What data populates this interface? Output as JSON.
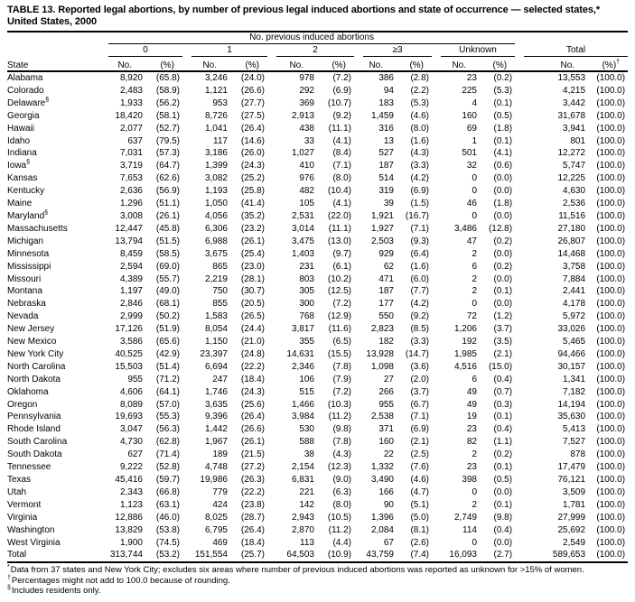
{
  "title": {
    "line1": "TABLE 13. Reported legal abortions, by number of previous legal induced abortions and state of occurrence — selected states,*",
    "line2": "United States, 2000"
  },
  "table": {
    "header": {
      "spanner": "No. previous induced abortions",
      "state_col": "State",
      "groups": [
        "0",
        "1",
        "2",
        "≥3",
        "Unknown",
        "Total"
      ],
      "no_label": "No.",
      "pct_label": "(%)",
      "total_pct_marker": "†"
    },
    "rows": [
      {
        "state": "Alabama",
        "marker": "",
        "v": [
          "8,920",
          "(65.8)",
          "3,246",
          "(24.0)",
          "978",
          "(7.2)",
          "386",
          "(2.8)",
          "23",
          "(0.2)",
          "13,553",
          "(100.0)"
        ]
      },
      {
        "state": "Colorado",
        "marker": "",
        "v": [
          "2,483",
          "(58.9)",
          "1,121",
          "(26.6)",
          "292",
          "(6.9)",
          "94",
          "(2.2)",
          "225",
          "(5.3)",
          "4,215",
          "(100.0)"
        ]
      },
      {
        "state": "Delaware",
        "marker": "§",
        "v": [
          "1,933",
          "(56.2)",
          "953",
          "(27.7)",
          "369",
          "(10.7)",
          "183",
          "(5.3)",
          "4",
          "(0.1)",
          "3,442",
          "(100.0)"
        ]
      },
      {
        "state": "Georgia",
        "marker": "",
        "v": [
          "18,420",
          "(58.1)",
          "8,726",
          "(27.5)",
          "2,913",
          "(9.2)",
          "1,459",
          "(4.6)",
          "160",
          "(0.5)",
          "31,678",
          "(100.0)"
        ]
      },
      {
        "state": "Hawaii",
        "marker": "",
        "v": [
          "2,077",
          "(52.7)",
          "1,041",
          "(26.4)",
          "438",
          "(11.1)",
          "316",
          "(8.0)",
          "69",
          "(1.8)",
          "3,941",
          "(100.0)"
        ]
      },
      {
        "state": "Idaho",
        "marker": "",
        "v": [
          "637",
          "(79.5)",
          "117",
          "(14.6)",
          "33",
          "(4.1)",
          "13",
          "(1.6)",
          "1",
          "(0.1)",
          "801",
          "(100.0)"
        ]
      },
      {
        "state": "Indiana",
        "marker": "",
        "v": [
          "7,031",
          "(57.3)",
          "3,186",
          "(26.0)",
          "1,027",
          "(8.4)",
          "527",
          "(4.3)",
          "501",
          "(4.1)",
          "12,272",
          "(100.0)"
        ]
      },
      {
        "state": "Iowa",
        "marker": "§",
        "v": [
          "3,719",
          "(64.7)",
          "1,399",
          "(24.3)",
          "410",
          "(7.1)",
          "187",
          "(3.3)",
          "32",
          "(0.6)",
          "5,747",
          "(100.0)"
        ]
      },
      {
        "state": "Kansas",
        "marker": "",
        "v": [
          "7,653",
          "(62.6)",
          "3,082",
          "(25.2)",
          "976",
          "(8.0)",
          "514",
          "(4.2)",
          "0",
          "(0.0)",
          "12,225",
          "(100.0)"
        ]
      },
      {
        "state": "Kentucky",
        "marker": "",
        "v": [
          "2,636",
          "(56.9)",
          "1,193",
          "(25.8)",
          "482",
          "(10.4)",
          "319",
          "(6.9)",
          "0",
          "(0.0)",
          "4,630",
          "(100.0)"
        ]
      },
      {
        "state": "Maine",
        "marker": "",
        "v": [
          "1,296",
          "(51.1)",
          "1,050",
          "(41.4)",
          "105",
          "(4.1)",
          "39",
          "(1.5)",
          "46",
          "(1.8)",
          "2,536",
          "(100.0)"
        ]
      },
      {
        "state": "Maryland",
        "marker": "§",
        "v": [
          "3,008",
          "(26.1)",
          "4,056",
          "(35.2)",
          "2,531",
          "(22.0)",
          "1,921",
          "(16.7)",
          "0",
          "(0.0)",
          "11,516",
          "(100.0)"
        ]
      },
      {
        "state": "Massachusetts",
        "marker": "",
        "v": [
          "12,447",
          "(45.8)",
          "6,306",
          "(23.2)",
          "3,014",
          "(11.1)",
          "1,927",
          "(7.1)",
          "3,486",
          "(12.8)",
          "27,180",
          "(100.0)"
        ]
      },
      {
        "state": "Michigan",
        "marker": "",
        "v": [
          "13,794",
          "(51.5)",
          "6,988",
          "(26.1)",
          "3,475",
          "(13.0)",
          "2,503",
          "(9.3)",
          "47",
          "(0.2)",
          "26,807",
          "(100.0)"
        ]
      },
      {
        "state": "Minnesota",
        "marker": "",
        "v": [
          "8,459",
          "(58.5)",
          "3,675",
          "(25.4)",
          "1,403",
          "(9.7)",
          "929",
          "(6.4)",
          "2",
          "(0.0)",
          "14,468",
          "(100.0)"
        ]
      },
      {
        "state": "Mississippi",
        "marker": "",
        "v": [
          "2,594",
          "(69.0)",
          "865",
          "(23.0)",
          "231",
          "(6.1)",
          "62",
          "(1.6)",
          "6",
          "(0.2)",
          "3,758",
          "(100.0)"
        ]
      },
      {
        "state": "Missouri",
        "marker": "",
        "v": [
          "4,389",
          "(55.7)",
          "2,219",
          "(28.1)",
          "803",
          "(10.2)",
          "471",
          "(6.0)",
          "2",
          "(0.0)",
          "7,884",
          "(100.0)"
        ]
      },
      {
        "state": "Montana",
        "marker": "",
        "v": [
          "1,197",
          "(49.0)",
          "750",
          "(30.7)",
          "305",
          "(12.5)",
          "187",
          "(7.7)",
          "2",
          "(0.1)",
          "2,441",
          "(100.0)"
        ]
      },
      {
        "state": "Nebraska",
        "marker": "",
        "v": [
          "2,846",
          "(68.1)",
          "855",
          "(20.5)",
          "300",
          "(7.2)",
          "177",
          "(4.2)",
          "0",
          "(0.0)",
          "4,178",
          "(100.0)"
        ]
      },
      {
        "state": "Nevada",
        "marker": "",
        "v": [
          "2,999",
          "(50.2)",
          "1,583",
          "(26.5)",
          "768",
          "(12.9)",
          "550",
          "(9.2)",
          "72",
          "(1.2)",
          "5,972",
          "(100.0)"
        ]
      },
      {
        "state": "New Jersey",
        "marker": "",
        "v": [
          "17,126",
          "(51.9)",
          "8,054",
          "(24.4)",
          "3,817",
          "(11.6)",
          "2,823",
          "(8.5)",
          "1,206",
          "(3.7)",
          "33,026",
          "(100.0)"
        ]
      },
      {
        "state": "New Mexico",
        "marker": "",
        "v": [
          "3,586",
          "(65.6)",
          "1,150",
          "(21.0)",
          "355",
          "(6.5)",
          "182",
          "(3.3)",
          "192",
          "(3.5)",
          "5,465",
          "(100.0)"
        ]
      },
      {
        "state": "New York City",
        "marker": "",
        "v": [
          "40,525",
          "(42.9)",
          "23,397",
          "(24.8)",
          "14,631",
          "(15.5)",
          "13,928",
          "(14.7)",
          "1,985",
          "(2.1)",
          "94,466",
          "(100.0)"
        ]
      },
      {
        "state": "North Carolina",
        "marker": "",
        "v": [
          "15,503",
          "(51.4)",
          "6,694",
          "(22.2)",
          "2,346",
          "(7.8)",
          "1,098",
          "(3.6)",
          "4,516",
          "(15.0)",
          "30,157",
          "(100.0)"
        ]
      },
      {
        "state": "North Dakota",
        "marker": "",
        "v": [
          "955",
          "(71.2)",
          "247",
          "(18.4)",
          "106",
          "(7.9)",
          "27",
          "(2.0)",
          "6",
          "(0.4)",
          "1,341",
          "(100.0)"
        ]
      },
      {
        "state": "Oklahoma",
        "marker": "",
        "v": [
          "4,606",
          "(64.1)",
          "1,746",
          "(24.3)",
          "515",
          "(7.2)",
          "266",
          "(3.7)",
          "49",
          "(0.7)",
          "7,182",
          "(100.0)"
        ]
      },
      {
        "state": "Oregon",
        "marker": "",
        "v": [
          "8,089",
          "(57.0)",
          "3,635",
          "(25.6)",
          "1,466",
          "(10.3)",
          "955",
          "(6.7)",
          "49",
          "(0.3)",
          "14,194",
          "(100.0)"
        ]
      },
      {
        "state": "Pennsylvania",
        "marker": "",
        "v": [
          "19,693",
          "(55.3)",
          "9,396",
          "(26.4)",
          "3,984",
          "(11.2)",
          "2,538",
          "(7.1)",
          "19",
          "(0.1)",
          "35,630",
          "(100.0)"
        ]
      },
      {
        "state": "Rhode Island",
        "marker": "",
        "v": [
          "3,047",
          "(56.3)",
          "1,442",
          "(26.6)",
          "530",
          "(9.8)",
          "371",
          "(6.9)",
          "23",
          "(0.4)",
          "5,413",
          "(100.0)"
        ]
      },
      {
        "state": "South Carolina",
        "marker": "",
        "v": [
          "4,730",
          "(62.8)",
          "1,967",
          "(26.1)",
          "588",
          "(7.8)",
          "160",
          "(2.1)",
          "82",
          "(1.1)",
          "7,527",
          "(100.0)"
        ]
      },
      {
        "state": "South Dakota",
        "marker": "",
        "v": [
          "627",
          "(71.4)",
          "189",
          "(21.5)",
          "38",
          "(4.3)",
          "22",
          "(2.5)",
          "2",
          "(0.2)",
          "878",
          "(100.0)"
        ]
      },
      {
        "state": "Tennessee",
        "marker": "",
        "v": [
          "9,222",
          "(52.8)",
          "4,748",
          "(27.2)",
          "2,154",
          "(12.3)",
          "1,332",
          "(7.6)",
          "23",
          "(0.1)",
          "17,479",
          "(100.0)"
        ]
      },
      {
        "state": "Texas",
        "marker": "",
        "v": [
          "45,416",
          "(59.7)",
          "19,986",
          "(26.3)",
          "6,831",
          "(9.0)",
          "3,490",
          "(4.6)",
          "398",
          "(0.5)",
          "76,121",
          "(100.0)"
        ]
      },
      {
        "state": "Utah",
        "marker": "",
        "v": [
          "2,343",
          "(66.8)",
          "779",
          "(22.2)",
          "221",
          "(6.3)",
          "166",
          "(4.7)",
          "0",
          "(0.0)",
          "3,509",
          "(100.0)"
        ]
      },
      {
        "state": "Vermont",
        "marker": "",
        "v": [
          "1,123",
          "(63.1)",
          "424",
          "(23.8)",
          "142",
          "(8.0)",
          "90",
          "(5.1)",
          "2",
          "(0.1)",
          "1,781",
          "(100.0)"
        ]
      },
      {
        "state": "Virginia",
        "marker": "",
        "v": [
          "12,886",
          "(46.0)",
          "8,025",
          "(28.7)",
          "2,943",
          "(10.5)",
          "1,396",
          "(5.0)",
          "2,749",
          "(9.8)",
          "27,999",
          "(100.0)"
        ]
      },
      {
        "state": "Washington",
        "marker": "",
        "v": [
          "13,829",
          "(53.8)",
          "6,795",
          "(26.4)",
          "2,870",
          "(11.2)",
          "2,084",
          "(8.1)",
          "114",
          "(0.4)",
          "25,692",
          "(100.0)"
        ]
      },
      {
        "state": "West Virginia",
        "marker": "",
        "v": [
          "1,900",
          "(74.5)",
          "469",
          "(18.4)",
          "113",
          "(4.4)",
          "67",
          "(2.6)",
          "0",
          "(0.0)",
          "2,549",
          "(100.0)"
        ]
      }
    ],
    "total_row": {
      "state": "Total",
      "marker": "",
      "v": [
        "313,744",
        "(53.2)",
        "151,554",
        "(25.7)",
        "64,503",
        "(10.9)",
        "43,759",
        "(7.4)",
        "16,093",
        "(2.7)",
        "589,653",
        "(100.0)"
      ]
    }
  },
  "footnotes": [
    {
      "marker": "*",
      "text": "Data from 37 states and New York City; excludes six areas where number of previous induced abortions was reported as unknown for >15% of women."
    },
    {
      "marker": "†",
      "text": "Percentages might not add to 100.0 because of rounding."
    },
    {
      "marker": "§",
      "text": "Includes residents only."
    }
  ]
}
